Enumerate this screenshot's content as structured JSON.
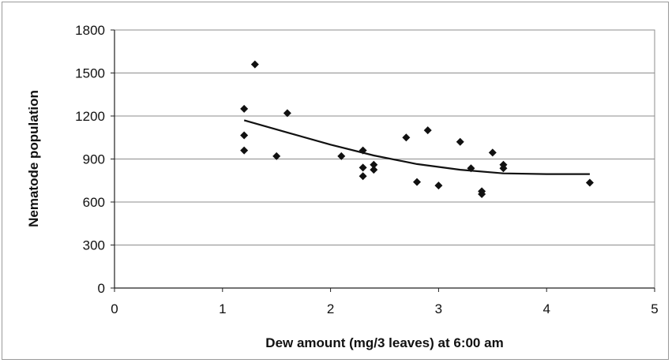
{
  "chart_data": {
    "type": "scatter",
    "xlabel": "Dew amount (mg/3 leaves) at 6:00 am",
    "ylabel": "Nematode population",
    "xlim": [
      0,
      5
    ],
    "ylim": [
      0,
      1800
    ],
    "x_ticks": [
      "0",
      "1",
      "2",
      "3",
      "4",
      "5"
    ],
    "y_ticks": [
      "0",
      "300",
      "600",
      "900",
      "1200",
      "1500",
      "1800"
    ],
    "grid": "horizontal",
    "legend": "none",
    "marker_color": "#111111",
    "points": [
      {
        "x": 1.2,
        "y": 1250
      },
      {
        "x": 1.2,
        "y": 1065
      },
      {
        "x": 1.2,
        "y": 960
      },
      {
        "x": 1.3,
        "y": 1560
      },
      {
        "x": 1.5,
        "y": 920
      },
      {
        "x": 1.6,
        "y": 1220
      },
      {
        "x": 2.1,
        "y": 920
      },
      {
        "x": 2.3,
        "y": 960
      },
      {
        "x": 2.3,
        "y": 840
      },
      {
        "x": 2.3,
        "y": 780
      },
      {
        "x": 2.4,
        "y": 860
      },
      {
        "x": 2.4,
        "y": 825
      },
      {
        "x": 2.7,
        "y": 1050
      },
      {
        "x": 2.8,
        "y": 740
      },
      {
        "x": 2.9,
        "y": 1100
      },
      {
        "x": 3.0,
        "y": 715
      },
      {
        "x": 3.2,
        "y": 1020
      },
      {
        "x": 3.3,
        "y": 835
      },
      {
        "x": 3.4,
        "y": 675
      },
      {
        "x": 3.4,
        "y": 655
      },
      {
        "x": 3.5,
        "y": 945
      },
      {
        "x": 3.6,
        "y": 860
      },
      {
        "x": 3.6,
        "y": 835
      },
      {
        "x": 4.4,
        "y": 735
      }
    ],
    "trend_line": [
      {
        "x": 1.2,
        "y": 1170
      },
      {
        "x": 1.6,
        "y": 1085
      },
      {
        "x": 2.0,
        "y": 1000
      },
      {
        "x": 2.4,
        "y": 925
      },
      {
        "x": 2.8,
        "y": 865
      },
      {
        "x": 3.2,
        "y": 825
      },
      {
        "x": 3.6,
        "y": 800
      },
      {
        "x": 4.0,
        "y": 795
      },
      {
        "x": 4.4,
        "y": 795
      }
    ]
  }
}
